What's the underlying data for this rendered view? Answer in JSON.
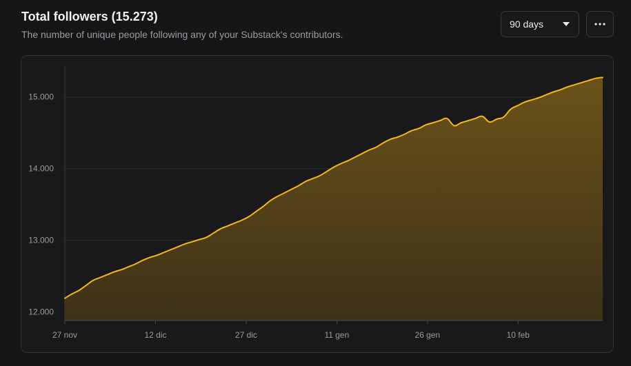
{
  "header": {
    "title": "Total followers (15.273)",
    "subtitle": "The number of unique people following any of your Substack's contributors."
  },
  "controls": {
    "range_label": "90 days",
    "range_icon": "chevron-down-icon",
    "more_icon": "more-horizontal-icon"
  },
  "colors": {
    "line": "#F5B81B",
    "fill_top": "#6B5219",
    "fill_bottom": "#3D3118",
    "background": "#161618",
    "grid": "#2E2E31",
    "tick_label": "#9C9CA1"
  },
  "chart_data": {
    "type": "area",
    "title": "Total followers (15.273)",
    "xlabel": "",
    "ylabel": "",
    "y_ticks": [
      12000,
      13000,
      14000,
      15000
    ],
    "y_tick_labels": [
      "12.000",
      "13.000",
      "14.000",
      "15.000"
    ],
    "x_tick_labels": [
      "27 nov",
      "12 dic",
      "27 dic",
      "11 gen",
      "26 gen",
      "10 feb"
    ],
    "x_tick_days": [
      0,
      15,
      30,
      45,
      60,
      75
    ],
    "ylim": [
      11880,
      15430
    ],
    "xlim": [
      0,
      89
    ],
    "grid": "horizontal",
    "legend": "none",
    "series": [
      {
        "values": [
          12190,
          12250,
          12300,
          12370,
          12440,
          12480,
          12520,
          12560,
          12590,
          12630,
          12670,
          12720,
          12760,
          12790,
          12830,
          12870,
          12910,
          12950,
          12980,
          13010,
          13040,
          13100,
          13160,
          13200,
          13240,
          13280,
          13330,
          13400,
          13470,
          13550,
          13610,
          13660,
          13710,
          13760,
          13820,
          13860,
          13900,
          13960,
          14020,
          14070,
          14110,
          14160,
          14210,
          14260,
          14300,
          14360,
          14410,
          14440,
          14480,
          14530,
          14560,
          14610,
          14640,
          14670,
          14700,
          14600,
          14640,
          14670,
          14700,
          14730,
          14650,
          14690,
          14720,
          14830,
          14880,
          14930,
          14960,
          14990,
          15030,
          15070,
          15100,
          15140,
          15170,
          15200,
          15230,
          15260,
          15273
        ]
      }
    ]
  }
}
